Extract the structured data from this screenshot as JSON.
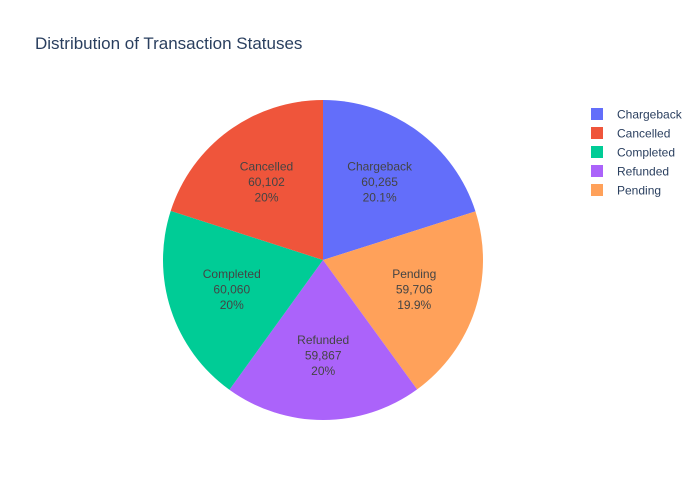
{
  "chart_data": {
    "type": "pie",
    "title": "Distribution of Transaction Statuses",
    "slices": [
      {
        "label": "Chargeback",
        "value": 60265,
        "value_text": "60,265",
        "percent_text": "20.1%",
        "color": "#636efa"
      },
      {
        "label": "Pending",
        "value": 59706,
        "value_text": "59,706",
        "percent_text": "19.9%",
        "color": "#ffa15a"
      },
      {
        "label": "Refunded",
        "value": 59867,
        "value_text": "59,867",
        "percent_text": "20%",
        "color": "#ab63fa"
      },
      {
        "label": "Completed",
        "value": 60060,
        "value_text": "60,060",
        "percent_text": "20%",
        "color": "#00cc96"
      },
      {
        "label": "Cancelled",
        "value": 60102,
        "value_text": "60,102",
        "percent_text": "20%",
        "color": "#ef553b"
      }
    ],
    "legend": {
      "placement": "top-right",
      "entries": [
        "Chargeback",
        "Cancelled",
        "Completed",
        "Refunded",
        "Pending"
      ]
    },
    "direction": "clockwise",
    "start": "top"
  }
}
